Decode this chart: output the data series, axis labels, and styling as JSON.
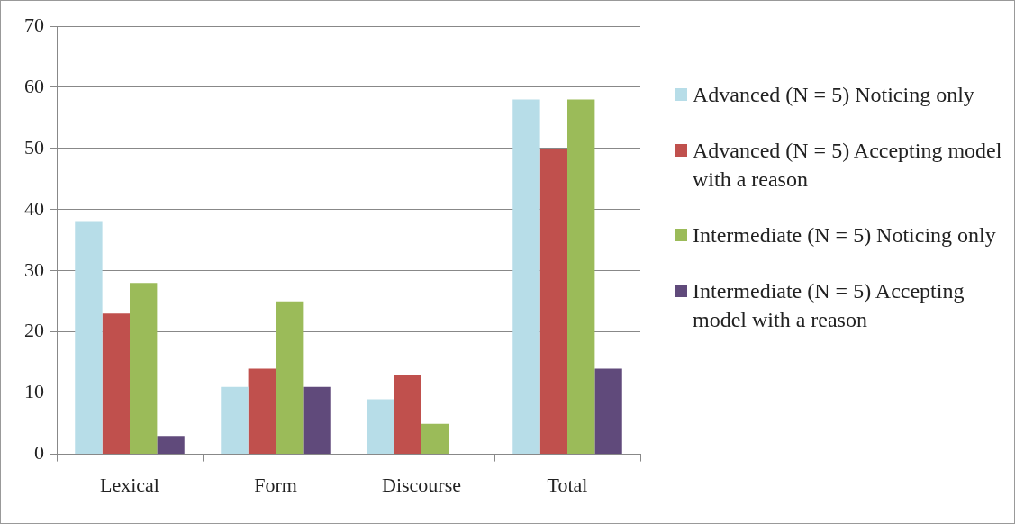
{
  "chart_data": {
    "type": "bar",
    "categories": [
      "Lexical",
      "Form",
      "Discourse",
      "Total"
    ],
    "series": [
      {
        "name": "Advanced (N = 5) Noticing only",
        "color": "#b7dde8",
        "values": [
          38,
          11,
          9,
          58
        ]
      },
      {
        "name": "Advanced (N = 5) Accepting model with a reason",
        "color": "#c0504d",
        "values": [
          23,
          14,
          13,
          50
        ]
      },
      {
        "name": "Intermediate (N = 5) Noticing only",
        "color": "#9bbb59",
        "values": [
          28,
          25,
          5,
          58
        ]
      },
      {
        "name": "Intermediate (N = 5) Accepting model with a reason",
        "color": "#604a7b",
        "values": [
          3,
          11,
          0,
          14
        ]
      }
    ],
    "ylim": [
      0,
      70
    ],
    "yticks": [
      0,
      10,
      20,
      30,
      40,
      50,
      60,
      70
    ],
    "grid": "y",
    "legend": "right"
  }
}
